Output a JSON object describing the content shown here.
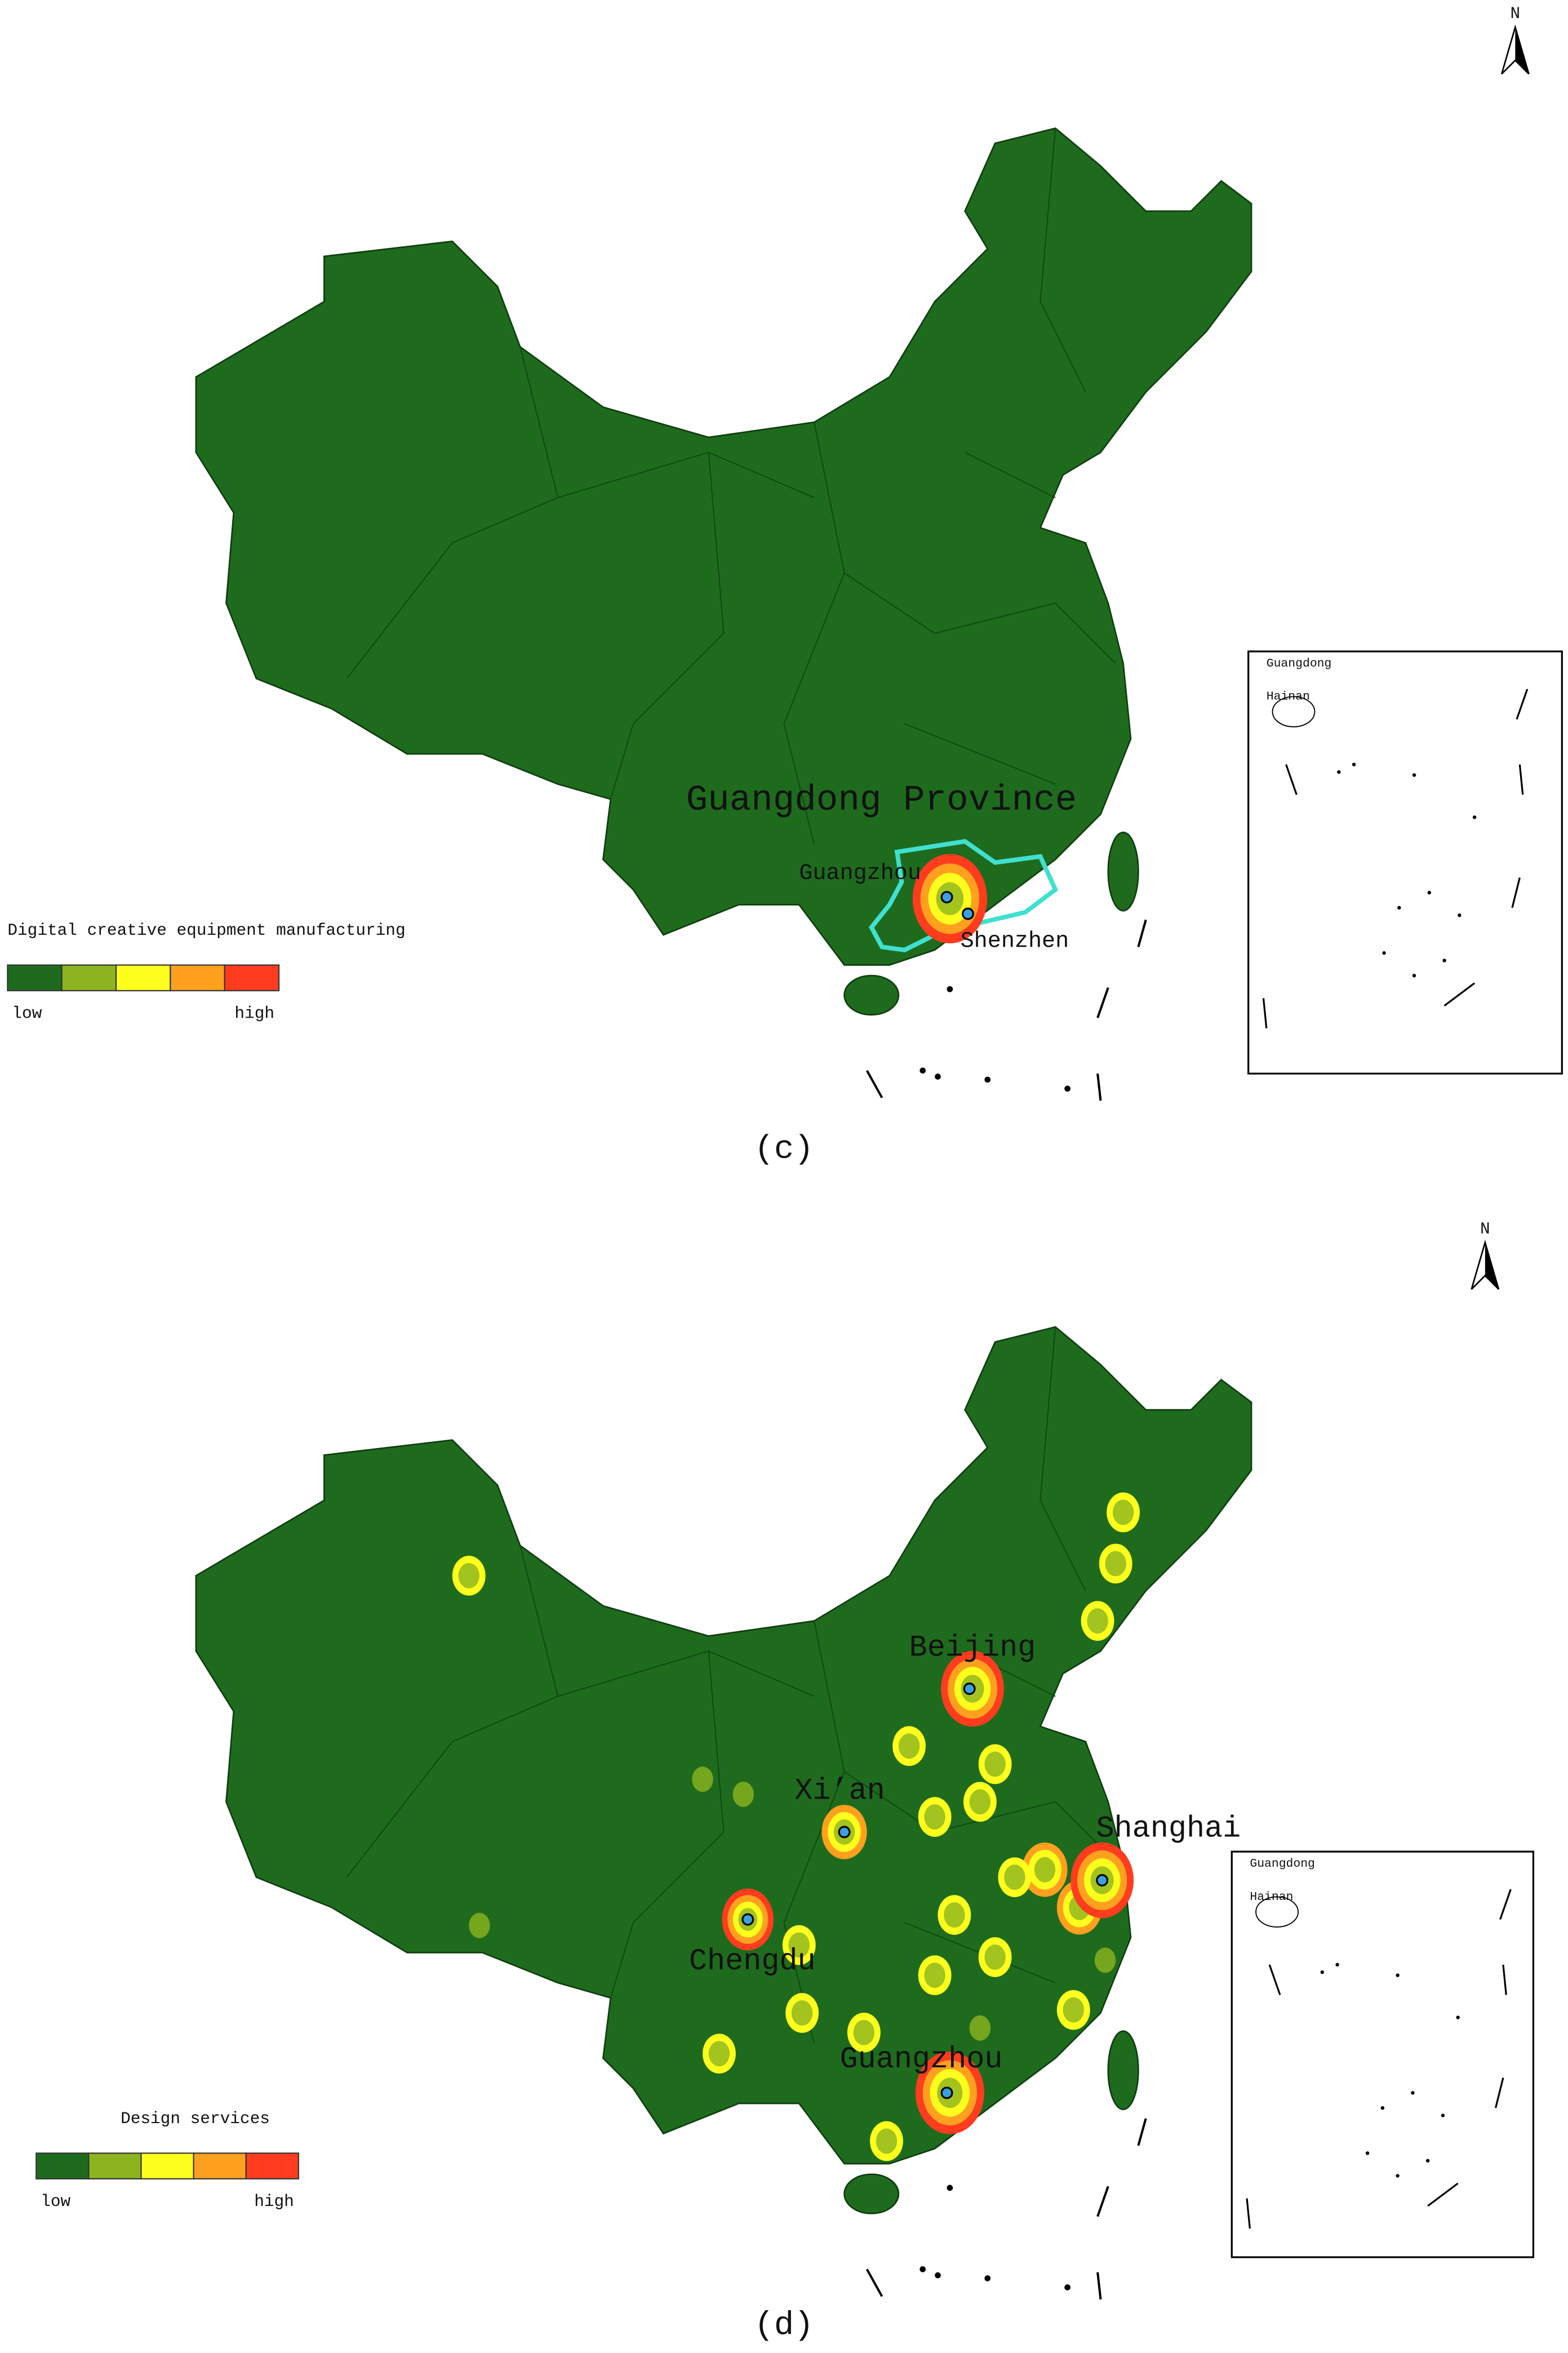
{
  "north": "N",
  "legend_colors": [
    "#1e6b1e",
    "#8cb41e",
    "#ffff1e",
    "#ffa01e",
    "#ff3c1e"
  ],
  "panels": [
    {
      "caption": "(c)",
      "region_label": "Guangdong Province",
      "cities": [
        "Guangzhou",
        "Shenzhen"
      ],
      "legend": {
        "title": "Digital creative equipment manufacturing",
        "low": "low",
        "high": "high"
      },
      "inset": {
        "labels": [
          "Guangdong",
          "Hainan"
        ]
      }
    },
    {
      "caption": "(d)",
      "cities": [
        "Beijing",
        "Xi’an",
        "Shanghai",
        "Chengdu",
        "Guangzhou"
      ],
      "legend": {
        "title": "Design services",
        "low": "low",
        "high": "high"
      },
      "inset": {
        "labels": [
          "Guangdong",
          "Hainan"
        ]
      }
    }
  ]
}
